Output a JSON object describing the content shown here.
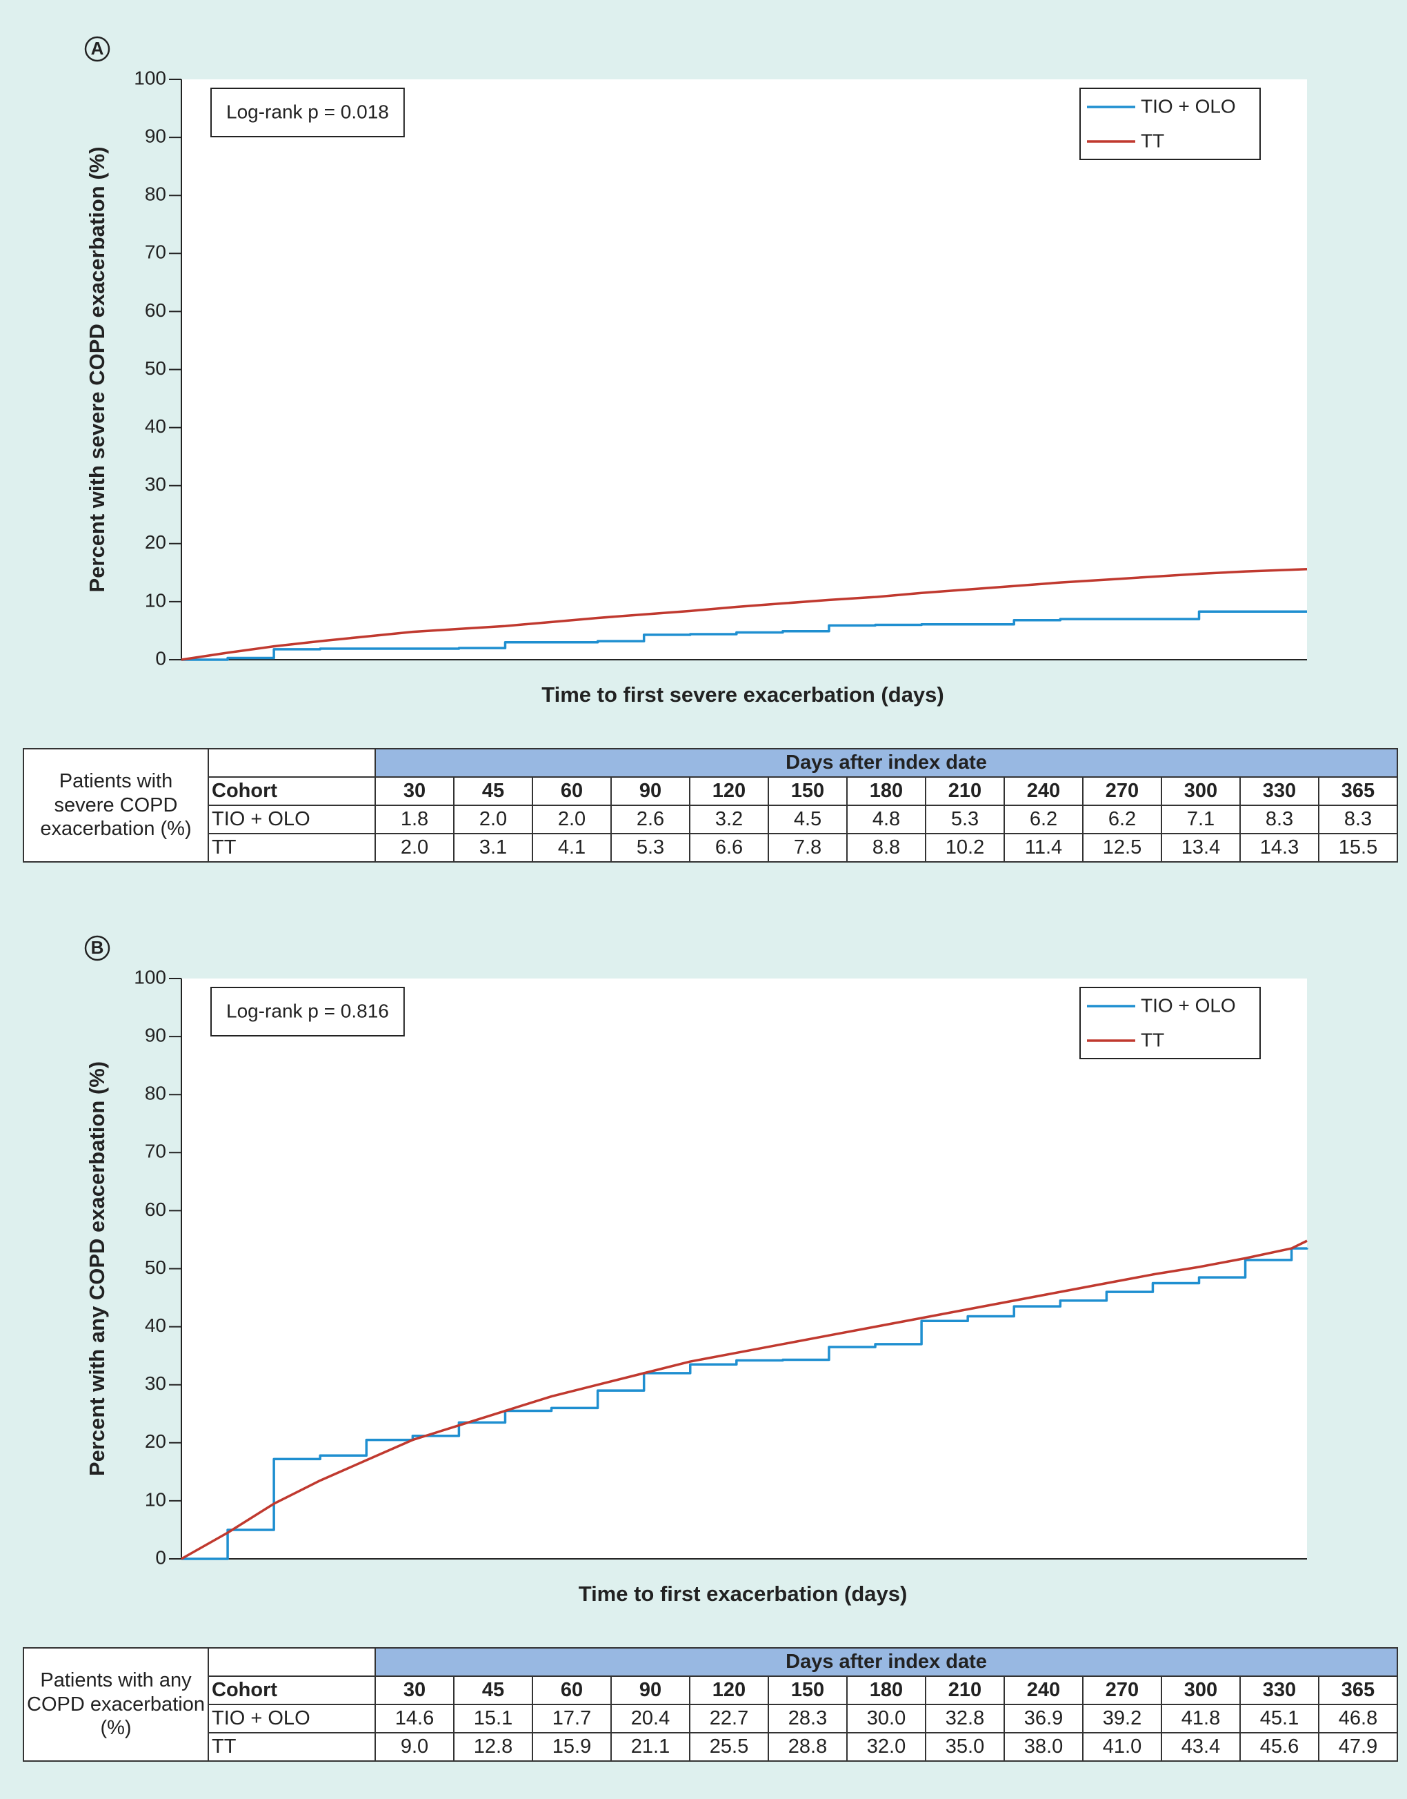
{
  "chart_data": [
    {
      "type": "line",
      "panel": "A",
      "annotation": "Log-rank p = 0.018",
      "x_label": "Time to first severe exacerbation (days)",
      "y_label": "Percent with severe COPD exacerbation (%)",
      "x": [
        0,
        15,
        30,
        45,
        60,
        75,
        90,
        105,
        120,
        135,
        150,
        165,
        180,
        195,
        210,
        225,
        240,
        255,
        270,
        285,
        300,
        315,
        330,
        345,
        360,
        365
      ],
      "series": [
        {
          "name": "TIO + OLO",
          "color": "#1f8fd0",
          "step": true,
          "values": [
            0,
            0.3,
            1.8,
            1.9,
            1.9,
            1.9,
            2.0,
            3.0,
            3.0,
            3.2,
            4.3,
            4.4,
            4.7,
            4.9,
            5.9,
            6.0,
            6.1,
            6.1,
            6.8,
            7.0,
            7.0,
            7.0,
            8.3,
            8.3,
            8.3,
            8.3
          ]
        },
        {
          "name": "TT",
          "color": "#c0392f",
          "step": false,
          "values": [
            0,
            1.2,
            2.3,
            3.2,
            4.0,
            4.8,
            5.3,
            5.8,
            6.5,
            7.2,
            7.8,
            8.4,
            9.1,
            9.7,
            10.3,
            10.8,
            11.5,
            12.1,
            12.7,
            13.3,
            13.8,
            14.3,
            14.8,
            15.2,
            15.5,
            15.6
          ]
        }
      ],
      "xlim": [
        0,
        365
      ],
      "ylim": [
        0,
        100
      ],
      "yticks": [
        0,
        10,
        20,
        30,
        40,
        50,
        60,
        70,
        80,
        90,
        100
      ],
      "legend": "upper right",
      "grid": false
    },
    {
      "type": "line",
      "panel": "B",
      "annotation": "Log-rank p = 0.816",
      "x_label": "Time to first exacerbation (days)",
      "y_label": "Percent with any COPD exacerbation (%)",
      "x": [
        0,
        15,
        30,
        45,
        60,
        75,
        90,
        105,
        120,
        135,
        150,
        165,
        180,
        195,
        210,
        225,
        240,
        255,
        270,
        285,
        300,
        315,
        330,
        345,
        360,
        365
      ],
      "series": [
        {
          "name": "TIO + OLO",
          "color": "#1f8fd0",
          "step": true,
          "values": [
            0,
            5,
            17.2,
            17.8,
            20.5,
            21.2,
            23.5,
            25.5,
            26,
            29,
            32,
            33.5,
            34.2,
            34.3,
            36.5,
            37,
            41,
            41.8,
            43.5,
            44.5,
            46,
            47.5,
            48.5,
            51.5,
            53.5,
            53.6
          ]
        },
        {
          "name": "TT",
          "color": "#c0392f",
          "step": false,
          "values": [
            0,
            4.5,
            9.5,
            13.5,
            17,
            20.5,
            23,
            25.5,
            28,
            30,
            32,
            34,
            35.5,
            37,
            38.5,
            40,
            41.5,
            43,
            44.5,
            46,
            47.5,
            49,
            50.3,
            51.8,
            53.5,
            54.8
          ]
        }
      ],
      "xlim": [
        0,
        365
      ],
      "ylim": [
        0,
        100
      ],
      "yticks": [
        0,
        10,
        20,
        30,
        40,
        50,
        60,
        70,
        80,
        90,
        100
      ],
      "legend": "upper right",
      "grid": false
    }
  ],
  "tables": [
    {
      "row_header": "Patients with severe COPD exacerbation (%)",
      "group_header": "Days after index date",
      "columns": [
        "Cohort",
        "30",
        "45",
        "60",
        "90",
        "120",
        "150",
        "180",
        "210",
        "240",
        "270",
        "300",
        "330",
        "365"
      ],
      "rows": [
        [
          "TIO + OLO",
          "1.8",
          "2.0",
          "2.0",
          "2.6",
          "3.2",
          "4.5",
          "4.8",
          "5.3",
          "6.2",
          "6.2",
          "7.1",
          "8.3",
          "8.3"
        ],
        [
          "TT",
          "2.0",
          "3.1",
          "4.1",
          "5.3",
          "6.6",
          "7.8",
          "8.8",
          "10.2",
          "11.4",
          "12.5",
          "13.4",
          "14.3",
          "15.5"
        ]
      ]
    },
    {
      "row_header": "Patients with any COPD exacerbation (%)",
      "group_header": "Days after index date",
      "columns": [
        "Cohort",
        "30",
        "45",
        "60",
        "90",
        "120",
        "150",
        "180",
        "210",
        "240",
        "270",
        "300",
        "330",
        "365"
      ],
      "rows": [
        [
          "TIO + OLO",
          "14.6",
          "15.1",
          "17.7",
          "20.4",
          "22.7",
          "28.3",
          "30.0",
          "32.8",
          "36.9",
          "39.2",
          "41.8",
          "45.1",
          "46.8"
        ],
        [
          "TT",
          "9.0",
          "12.8",
          "15.9",
          "21.1",
          "25.5",
          "28.8",
          "32.0",
          "35.0",
          "38.0",
          "41.0",
          "43.4",
          "45.6",
          "47.9"
        ]
      ]
    }
  ]
}
